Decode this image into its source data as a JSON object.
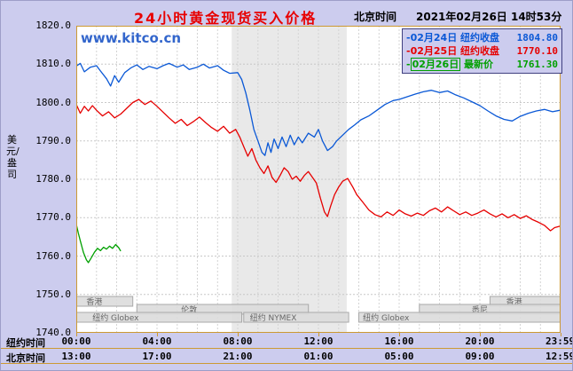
{
  "header": {
    "title": "24小时黄金现货买入价格",
    "timezone_label": "北京时间",
    "datetime": "2021年02月26日 14时53分"
  },
  "watermark": "www.kitco.cn",
  "y_axis_unit": "美元/盎司",
  "colors": {
    "background": "#ccccee",
    "plot_background": "#ffffff",
    "frame": "#cc9933",
    "title": "#e80000",
    "watermark": "#3366cc",
    "series_blue": "#0a58d6",
    "series_red": "#e60000",
    "series_green": "#00a000"
  },
  "legend": {
    "items": [
      {
        "date": "02月24日",
        "label": "纽约收盘",
        "value": "1804.80",
        "color": "#0a58d6",
        "boxed": false
      },
      {
        "date": "02月25日",
        "label": "纽约收盘",
        "value": "1770.10",
        "color": "#e60000",
        "boxed": false
      },
      {
        "date": "02月26日",
        "label": "最新价",
        "value": "1761.30",
        "color": "#00a000",
        "boxed": true
      }
    ]
  },
  "x_axis": {
    "rows": [
      {
        "name": "纽约时间",
        "labels": [
          {
            "t": 0,
            "text": "00:00"
          },
          {
            "t": 4,
            "text": "04:00"
          },
          {
            "t": 8,
            "text": "08:00"
          },
          {
            "t": 12,
            "text": "12:00"
          },
          {
            "t": 16,
            "text": "16:00"
          },
          {
            "t": 20,
            "text": "20:00"
          },
          {
            "t": 23.98,
            "text": "23:59"
          }
        ]
      },
      {
        "name": "北京时间",
        "labels": [
          {
            "t": 0,
            "text": "13:00"
          },
          {
            "t": 4,
            "text": "17:00"
          },
          {
            "t": 8,
            "text": "21:00"
          },
          {
            "t": 12,
            "text": "01:00"
          },
          {
            "t": 16,
            "text": "05:00"
          },
          {
            "t": 20,
            "text": "09:00"
          },
          {
            "t": 23.98,
            "text": "12:59"
          }
        ]
      }
    ]
  },
  "chart_data": {
    "type": "line",
    "title": "24小时黄金现货买入价格",
    "ylabel": "美元/盎司",
    "ylim": [
      1740,
      1820
    ],
    "xlim_hours": [
      0,
      24
    ],
    "grid": true,
    "legend_position": "top-right",
    "y_ticks": [
      "1820.0",
      "1810.0",
      "1800.0",
      "1790.0",
      "1780.0",
      "1770.0",
      "1760.0",
      "1750.0",
      "1740.0"
    ],
    "y_gridlines": [
      1750,
      1760,
      1770,
      1780,
      1790,
      1800,
      1810
    ],
    "x_gridlines": [
      1,
      2,
      3,
      4,
      5,
      6,
      7,
      8,
      9,
      10,
      11,
      12,
      13,
      14,
      15,
      16,
      17,
      18,
      19,
      20,
      21,
      22,
      23
    ],
    "shaded_band": {
      "start": 7.7,
      "end": 13.4,
      "color": "#e9e9e9"
    },
    "series": [
      {
        "key": "feb24",
        "name": "02月24日",
        "close_label": "纽约收盘",
        "close": 1804.8,
        "color": "#0a58d6",
        "points": [
          [
            0,
            1809.5
          ],
          [
            0.2,
            1810.2
          ],
          [
            0.4,
            1808.0
          ],
          [
            0.7,
            1809.2
          ],
          [
            1.0,
            1809.6
          ],
          [
            1.2,
            1808.2
          ],
          [
            1.5,
            1806.2
          ],
          [
            1.7,
            1804.3
          ],
          [
            1.9,
            1807.0
          ],
          [
            2.1,
            1805.3
          ],
          [
            2.4,
            1807.8
          ],
          [
            2.7,
            1809.0
          ],
          [
            3.0,
            1809.8
          ],
          [
            3.3,
            1808.6
          ],
          [
            3.6,
            1809.4
          ],
          [
            4.0,
            1808.8
          ],
          [
            4.3,
            1809.6
          ],
          [
            4.6,
            1810.2
          ],
          [
            5.0,
            1809.2
          ],
          [
            5.3,
            1809.8
          ],
          [
            5.6,
            1808.6
          ],
          [
            6.0,
            1809.2
          ],
          [
            6.3,
            1810.0
          ],
          [
            6.6,
            1809.0
          ],
          [
            7.0,
            1809.6
          ],
          [
            7.3,
            1808.4
          ],
          [
            7.6,
            1807.6
          ],
          [
            8.0,
            1807.8
          ],
          [
            8.2,
            1806.0
          ],
          [
            8.4,
            1802.5
          ],
          [
            8.6,
            1798.0
          ],
          [
            8.8,
            1793.0
          ],
          [
            9.0,
            1790.0
          ],
          [
            9.2,
            1787.0
          ],
          [
            9.35,
            1786.2
          ],
          [
            9.5,
            1789.5
          ],
          [
            9.65,
            1787.0
          ],
          [
            9.8,
            1790.5
          ],
          [
            10.0,
            1788.0
          ],
          [
            10.2,
            1791.0
          ],
          [
            10.4,
            1788.5
          ],
          [
            10.6,
            1791.5
          ],
          [
            10.8,
            1789.0
          ],
          [
            11.0,
            1791.0
          ],
          [
            11.2,
            1789.5
          ],
          [
            11.5,
            1792.0
          ],
          [
            11.8,
            1791.0
          ],
          [
            12.0,
            1793.0
          ],
          [
            12.2,
            1790.0
          ],
          [
            12.45,
            1787.5
          ],
          [
            12.7,
            1788.5
          ],
          [
            12.9,
            1790.0
          ],
          [
            13.2,
            1791.5
          ],
          [
            13.5,
            1793.0
          ],
          [
            13.8,
            1794.2
          ],
          [
            14.1,
            1795.5
          ],
          [
            14.5,
            1796.5
          ],
          [
            14.9,
            1798.0
          ],
          [
            15.3,
            1799.5
          ],
          [
            15.7,
            1800.5
          ],
          [
            16.0,
            1800.8
          ],
          [
            16.4,
            1801.5
          ],
          [
            16.8,
            1802.2
          ],
          [
            17.2,
            1802.8
          ],
          [
            17.6,
            1803.2
          ],
          [
            18.0,
            1802.6
          ],
          [
            18.4,
            1803.0
          ],
          [
            18.8,
            1802.0
          ],
          [
            19.2,
            1801.2
          ],
          [
            19.6,
            1800.2
          ],
          [
            20.0,
            1799.2
          ],
          [
            20.4,
            1797.8
          ],
          [
            20.8,
            1796.5
          ],
          [
            21.2,
            1795.6
          ],
          [
            21.6,
            1795.2
          ],
          [
            22.0,
            1796.4
          ],
          [
            22.4,
            1797.2
          ],
          [
            22.8,
            1797.8
          ],
          [
            23.2,
            1798.2
          ],
          [
            23.6,
            1797.6
          ],
          [
            23.98,
            1798.0
          ]
        ]
      },
      {
        "key": "feb25",
        "name": "02月25日",
        "close_label": "纽约收盘",
        "close": 1770.1,
        "color": "#e60000",
        "points": [
          [
            0,
            1799.5
          ],
          [
            0.2,
            1797.2
          ],
          [
            0.4,
            1799.0
          ],
          [
            0.6,
            1797.8
          ],
          [
            0.8,
            1799.2
          ],
          [
            1.0,
            1798.0
          ],
          [
            1.3,
            1796.5
          ],
          [
            1.6,
            1797.6
          ],
          [
            1.9,
            1796.0
          ],
          [
            2.2,
            1797.0
          ],
          [
            2.5,
            1798.5
          ],
          [
            2.8,
            1800.0
          ],
          [
            3.1,
            1800.8
          ],
          [
            3.4,
            1799.5
          ],
          [
            3.7,
            1800.4
          ],
          [
            4.0,
            1799.0
          ],
          [
            4.3,
            1797.5
          ],
          [
            4.6,
            1796.0
          ],
          [
            4.9,
            1794.6
          ],
          [
            5.2,
            1795.6
          ],
          [
            5.5,
            1794.0
          ],
          [
            5.8,
            1795.0
          ],
          [
            6.1,
            1796.2
          ],
          [
            6.4,
            1794.8
          ],
          [
            6.7,
            1793.5
          ],
          [
            7.0,
            1792.5
          ],
          [
            7.3,
            1793.8
          ],
          [
            7.6,
            1792.0
          ],
          [
            7.9,
            1793.0
          ],
          [
            8.1,
            1791.0
          ],
          [
            8.3,
            1788.5
          ],
          [
            8.5,
            1786.0
          ],
          [
            8.7,
            1788.0
          ],
          [
            8.9,
            1785.0
          ],
          [
            9.1,
            1783.0
          ],
          [
            9.3,
            1781.5
          ],
          [
            9.5,
            1783.5
          ],
          [
            9.7,
            1780.5
          ],
          [
            9.9,
            1779.2
          ],
          [
            10.1,
            1781.0
          ],
          [
            10.3,
            1783.0
          ],
          [
            10.5,
            1782.0
          ],
          [
            10.7,
            1780.0
          ],
          [
            10.9,
            1780.8
          ],
          [
            11.1,
            1779.5
          ],
          [
            11.3,
            1781.0
          ],
          [
            11.5,
            1782.0
          ],
          [
            11.7,
            1780.5
          ],
          [
            11.9,
            1779.0
          ],
          [
            12.1,
            1775.0
          ],
          [
            12.3,
            1771.5
          ],
          [
            12.45,
            1770.3
          ],
          [
            12.6,
            1773.0
          ],
          [
            12.8,
            1776.0
          ],
          [
            13.0,
            1778.0
          ],
          [
            13.2,
            1779.5
          ],
          [
            13.45,
            1780.2
          ],
          [
            13.7,
            1778.0
          ],
          [
            13.9,
            1776.0
          ],
          [
            14.2,
            1774.0
          ],
          [
            14.5,
            1772.0
          ],
          [
            14.8,
            1770.8
          ],
          [
            15.1,
            1770.2
          ],
          [
            15.4,
            1771.5
          ],
          [
            15.7,
            1770.6
          ],
          [
            16.0,
            1772.0
          ],
          [
            16.3,
            1771.0
          ],
          [
            16.6,
            1770.4
          ],
          [
            16.9,
            1771.2
          ],
          [
            17.2,
            1770.6
          ],
          [
            17.5,
            1771.8
          ],
          [
            17.8,
            1772.5
          ],
          [
            18.1,
            1771.5
          ],
          [
            18.4,
            1772.8
          ],
          [
            18.7,
            1771.8
          ],
          [
            19.0,
            1770.8
          ],
          [
            19.3,
            1771.5
          ],
          [
            19.6,
            1770.6
          ],
          [
            19.9,
            1771.2
          ],
          [
            20.2,
            1772.0
          ],
          [
            20.5,
            1771.0
          ],
          [
            20.8,
            1770.2
          ],
          [
            21.1,
            1771.0
          ],
          [
            21.4,
            1770.0
          ],
          [
            21.7,
            1770.8
          ],
          [
            22.0,
            1769.8
          ],
          [
            22.3,
            1770.5
          ],
          [
            22.6,
            1769.5
          ],
          [
            22.9,
            1768.8
          ],
          [
            23.2,
            1768.0
          ],
          [
            23.5,
            1766.6
          ],
          [
            23.7,
            1767.4
          ],
          [
            23.98,
            1767.8
          ]
        ]
      },
      {
        "key": "feb26",
        "name": "02月26日",
        "close_label": "最新价",
        "latest": 1761.3,
        "color": "#00a000",
        "points": [
          [
            0,
            1768.3
          ],
          [
            0.1,
            1766.0
          ],
          [
            0.2,
            1764.0
          ],
          [
            0.35,
            1761.0
          ],
          [
            0.5,
            1759.0
          ],
          [
            0.6,
            1758.3
          ],
          [
            0.75,
            1759.6
          ],
          [
            0.9,
            1761.0
          ],
          [
            1.05,
            1762.0
          ],
          [
            1.2,
            1761.4
          ],
          [
            1.35,
            1762.3
          ],
          [
            1.5,
            1761.8
          ],
          [
            1.65,
            1762.6
          ],
          [
            1.8,
            1762.0
          ],
          [
            1.95,
            1763.0
          ],
          [
            2.1,
            1762.2
          ],
          [
            2.2,
            1761.3
          ]
        ]
      }
    ],
    "sessions": [
      {
        "label": "香港",
        "row": 0,
        "start": 0,
        "end": 2.8,
        "label_at": 0.5
      },
      {
        "label": "香港",
        "row": 0,
        "start": 20.5,
        "end": 24,
        "label_at": 21.3
      },
      {
        "label": "伦敦",
        "row": 1,
        "start": 3.0,
        "end": 11.5,
        "label_at": 5.2
      },
      {
        "label": "悉尼",
        "row": 1,
        "start": 17.0,
        "end": 24,
        "label_at": 19.6
      },
      {
        "label": "纽约 Globex",
        "row": 2,
        "start": 0,
        "end": 8.2,
        "label_at": 0.8
      },
      {
        "label": "纽约 NYMEX",
        "row": 2,
        "start": 8.3,
        "end": 13.5,
        "label_at": 8.6
      },
      {
        "label": "纽约 Globex",
        "row": 2,
        "start": 14.0,
        "end": 24,
        "label_at": 14.2
      }
    ]
  }
}
